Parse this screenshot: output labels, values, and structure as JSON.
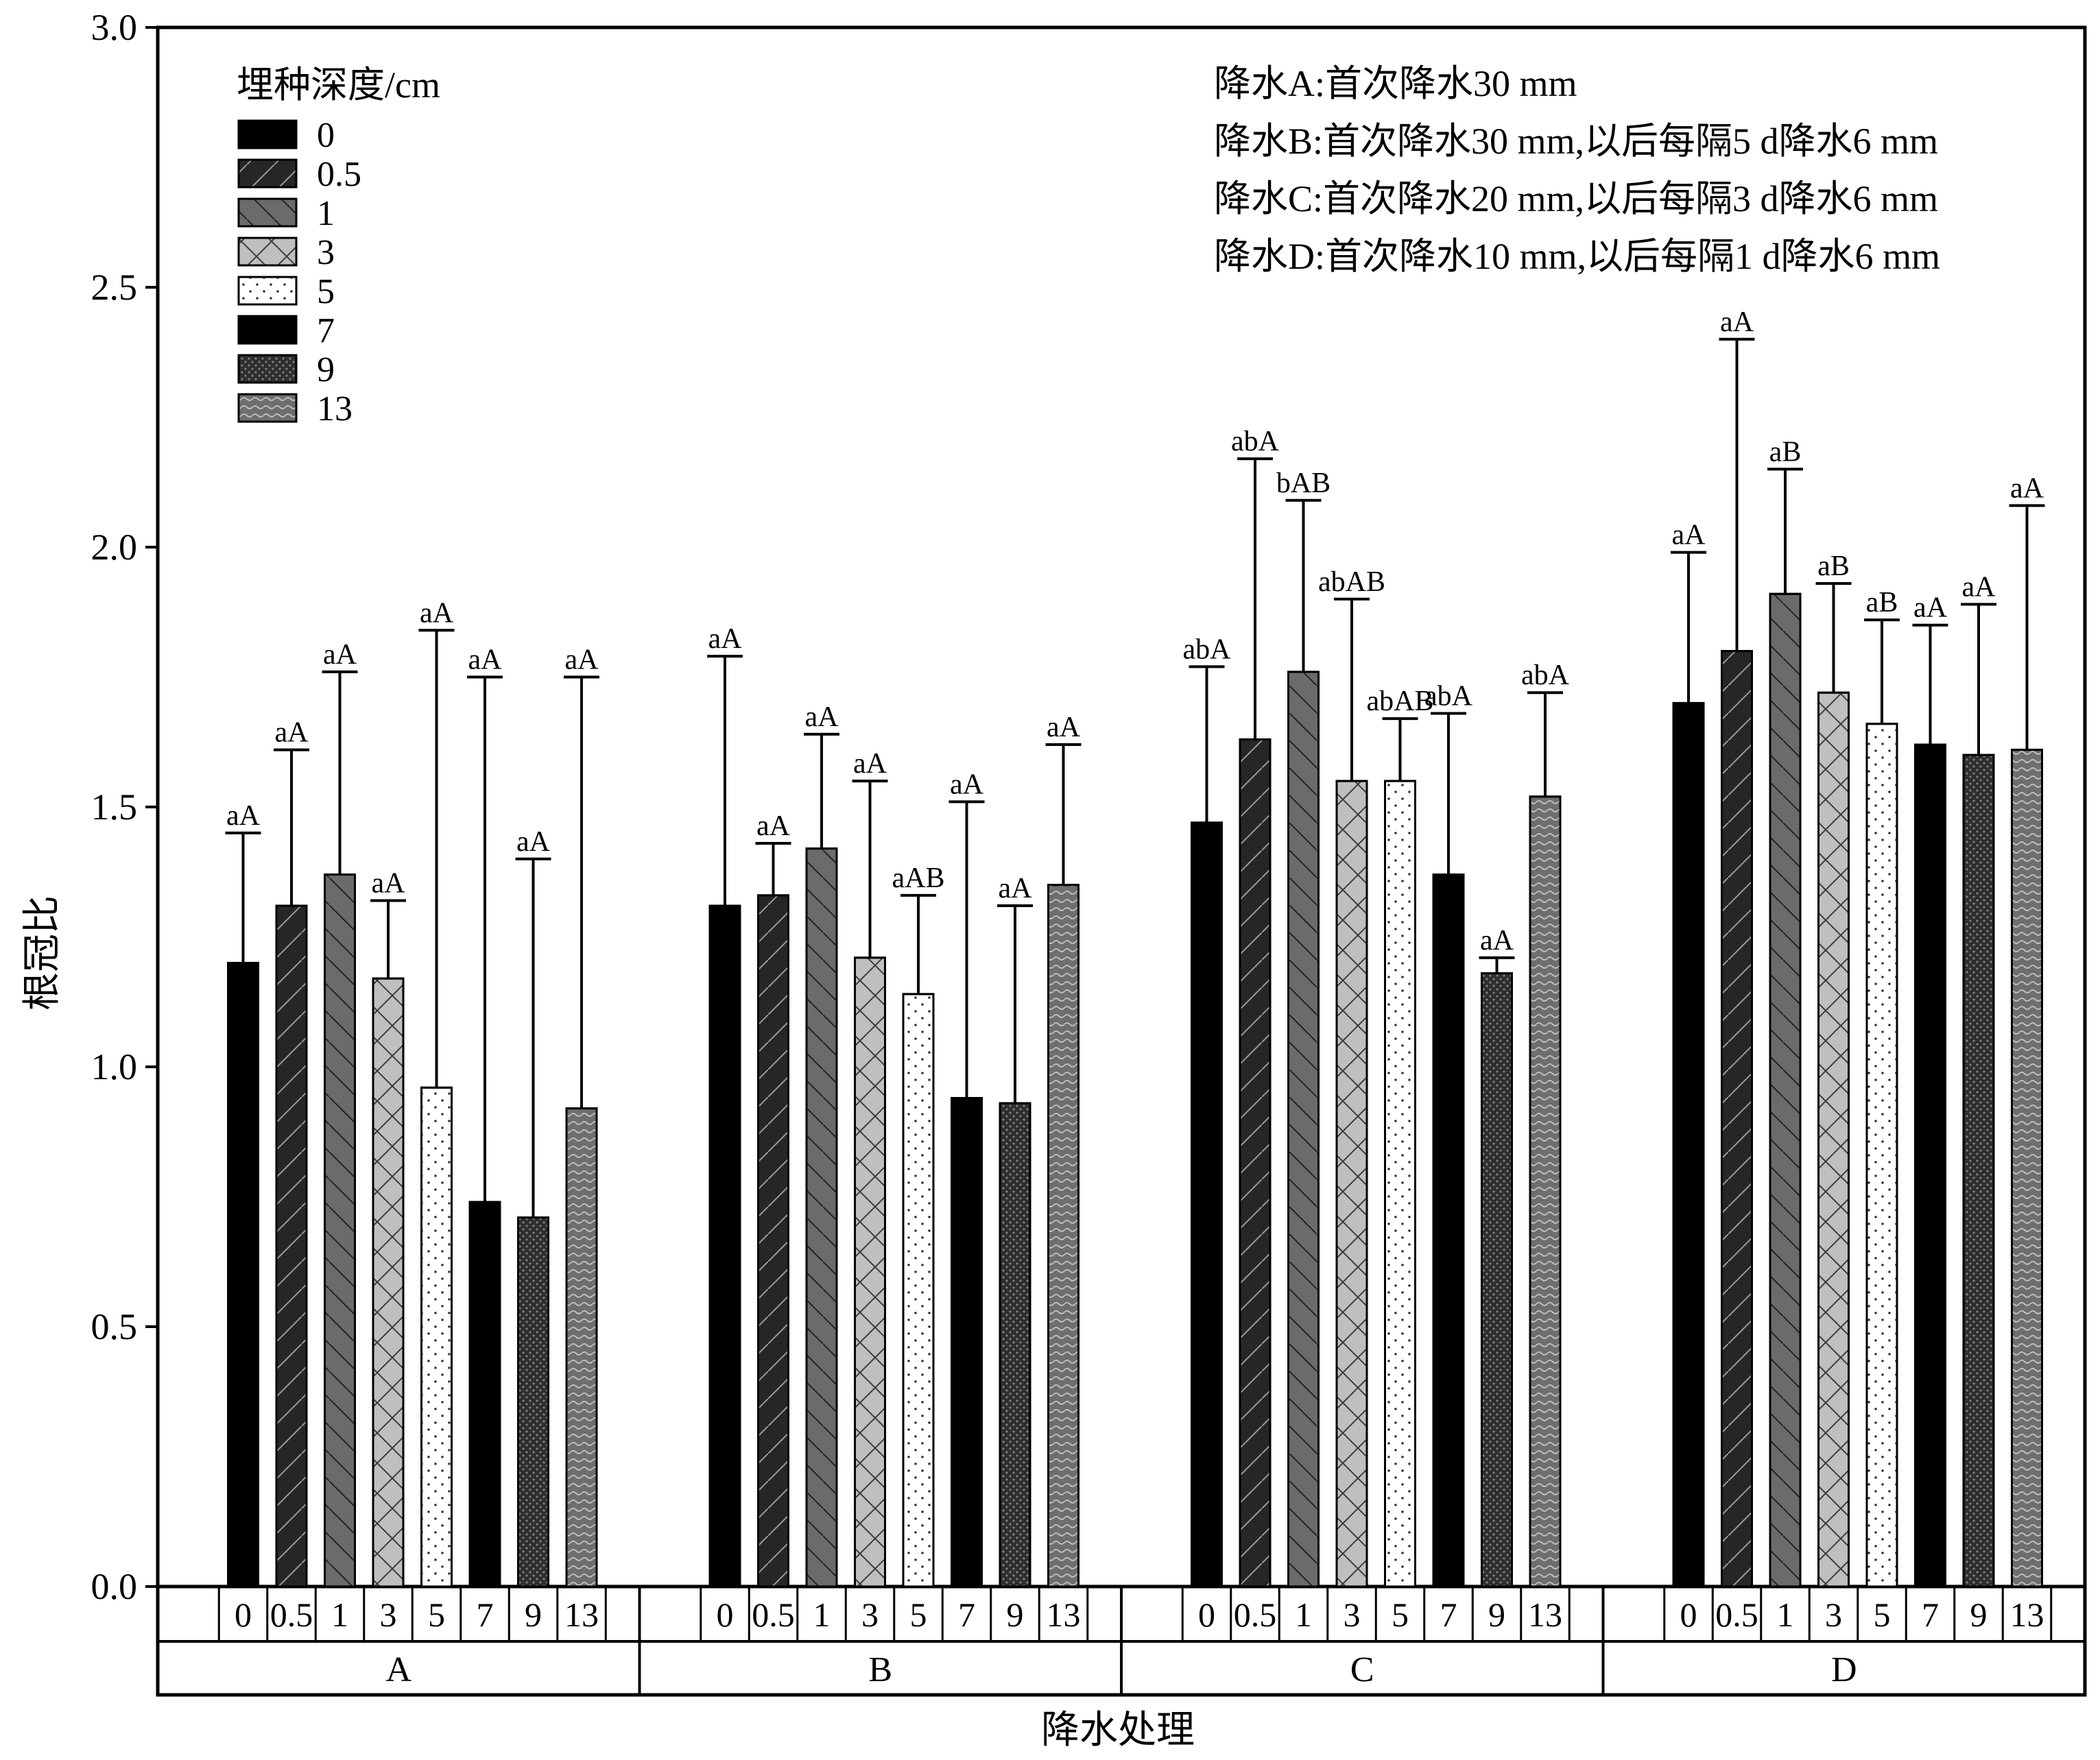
{
  "chart_data": {
    "type": "bar",
    "ylabel": "根冠比",
    "xlabel": "降水处理",
    "ylim": [
      0,
      3.0
    ],
    "yticks": [
      "0.0",
      "0.5",
      "1.0",
      "1.5",
      "2.0",
      "2.5",
      "3.0"
    ],
    "grid": false,
    "legend_title": "埋种深度/cm",
    "legend_position": "top-left",
    "categories": [
      "0",
      "0.5",
      "1",
      "3",
      "5",
      "7",
      "9",
      "13"
    ],
    "groups": [
      "A",
      "B",
      "C",
      "D"
    ],
    "series": [
      {
        "name": "A",
        "values": [
          1.2,
          1.31,
          1.37,
          1.17,
          0.96,
          0.74,
          0.71,
          0.92
        ],
        "error_upper": [
          1.45,
          1.61,
          1.76,
          1.32,
          1.84,
          1.75,
          1.4,
          1.75
        ],
        "labels": [
          "aA",
          "aA",
          "aA",
          "aA",
          "aA",
          "aA",
          "aA",
          "aA"
        ]
      },
      {
        "name": "B",
        "values": [
          1.31,
          1.33,
          1.42,
          1.21,
          1.14,
          0.94,
          0.93,
          1.35
        ],
        "error_upper": [
          1.79,
          1.43,
          1.64,
          1.55,
          1.33,
          1.51,
          1.31,
          1.62
        ],
        "labels": [
          "aA",
          "aA",
          "aA",
          "aA",
          "aAB",
          "aA",
          "aA",
          "aA"
        ]
      },
      {
        "name": "C",
        "values": [
          1.47,
          1.63,
          1.76,
          1.55,
          1.55,
          1.37,
          1.18,
          1.52
        ],
        "error_upper": [
          1.77,
          2.17,
          2.09,
          1.9,
          1.67,
          1.68,
          1.21,
          1.72
        ],
        "labels": [
          "abA",
          "abA",
          "bAB",
          "abAB",
          "abAB",
          "abA",
          "aA",
          "abA"
        ]
      },
      {
        "name": "D",
        "values": [
          1.7,
          1.8,
          1.91,
          1.72,
          1.66,
          1.62,
          1.6,
          1.61
        ],
        "error_upper": [
          1.99,
          2.4,
          2.15,
          1.93,
          1.86,
          1.85,
          1.89,
          2.08
        ],
        "labels": [
          "aA",
          "aA",
          "aB",
          "aB",
          "aB",
          "aA",
          "aA",
          "aA"
        ]
      }
    ],
    "annotations": [
      "降水A:首次降水30 mm",
      "降水B:首次降水30 mm,以后每隔5 d降水6 mm",
      "降水C:首次降水20 mm,以后每隔3 d降水6 mm",
      "降水D:首次降水10 mm,以后每隔1 d降水6 mm"
    ],
    "depth_styles": [
      {
        "fill": "#000000",
        "pattern": "solid"
      },
      {
        "fill": "#262626",
        "pattern": "fwd"
      },
      {
        "fill": "#6b6b6b",
        "pattern": "back"
      },
      {
        "fill": "#bfbfbf",
        "pattern": "cross"
      },
      {
        "fill": "#ffffff",
        "pattern": "dots"
      },
      {
        "fill": "#000000",
        "pattern": "solid"
      },
      {
        "fill": "#2e2e2e",
        "pattern": "dense-dots"
      },
      {
        "fill": "#6e6e6e",
        "pattern": "wave"
      }
    ]
  }
}
